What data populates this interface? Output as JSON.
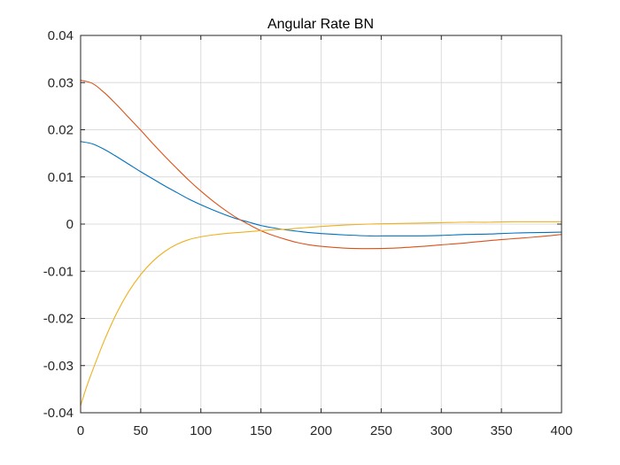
{
  "chart_data": {
    "type": "line",
    "title": "Angular Rate BN",
    "xlabel": "",
    "ylabel": "",
    "xlim": [
      0,
      400
    ],
    "ylim": [
      -0.04,
      0.04
    ],
    "xticks": [
      0,
      50,
      100,
      150,
      200,
      250,
      300,
      350,
      400
    ],
    "yticks": [
      0.04,
      0.03,
      0.02,
      0.01,
      0,
      -0.01,
      -0.02,
      -0.03,
      -0.04
    ],
    "xtick_labels": [
      "0",
      "50",
      "100",
      "150",
      "200",
      "250",
      "300",
      "350",
      "400"
    ],
    "ytick_labels": [
      "0.04",
      "0.03",
      "0.02",
      "0.01",
      "0",
      "-0.01",
      "-0.02",
      "-0.03",
      "-0.04"
    ],
    "grid": true,
    "series": [
      {
        "color": "#0072BD",
        "x": [
          0,
          10,
          20,
          30,
          40,
          50,
          60,
          70,
          80,
          90,
          100,
          110,
          120,
          130,
          140,
          150,
          160,
          170,
          180,
          190,
          200,
          220,
          240,
          260,
          280,
          300,
          320,
          340,
          360,
          380,
          400
        ],
        "y": [
          0.0175,
          0.017,
          0.0158,
          0.0143,
          0.0127,
          0.0111,
          0.0096,
          0.0081,
          0.0067,
          0.0053,
          0.0041,
          0.003,
          0.002,
          0.0011,
          0.0004,
          -0.0003,
          -0.0008,
          -0.0012,
          -0.0015,
          -0.0018,
          -0.002,
          -0.0023,
          -0.0025,
          -0.0025,
          -0.0025,
          -0.0024,
          -0.0022,
          -0.0021,
          -0.0019,
          -0.0018,
          -0.0017
        ]
      },
      {
        "color": "#D95319",
        "x": [
          0,
          10,
          20,
          30,
          40,
          50,
          60,
          70,
          80,
          90,
          100,
          110,
          120,
          130,
          140,
          150,
          160,
          170,
          180,
          190,
          200,
          220,
          240,
          260,
          280,
          300,
          320,
          340,
          360,
          380,
          400
        ],
        "y": [
          0.0305,
          0.0298,
          0.0278,
          0.0253,
          0.0226,
          0.0199,
          0.0171,
          0.0144,
          0.0118,
          0.0093,
          0.007,
          0.0049,
          0.003,
          0.0013,
          -0.0001,
          -0.0014,
          -0.0024,
          -0.0032,
          -0.0039,
          -0.0044,
          -0.0047,
          -0.0051,
          -0.0052,
          -0.0051,
          -0.0048,
          -0.0044,
          -0.004,
          -0.0035,
          -0.0031,
          -0.0027,
          -0.0022
        ]
      },
      {
        "color": "#EDB120",
        "x": [
          0,
          5,
          10,
          20,
          30,
          40,
          50,
          60,
          70,
          80,
          90,
          100,
          110,
          120,
          130,
          140,
          150,
          160,
          170,
          180,
          190,
          200,
          220,
          240,
          260,
          280,
          300,
          320,
          340,
          360,
          380,
          400
        ],
        "y": [
          -0.0385,
          -0.0345,
          -0.031,
          -0.0245,
          -0.0189,
          -0.0143,
          -0.0107,
          -0.0079,
          -0.0058,
          -0.0043,
          -0.0033,
          -0.0027,
          -0.0023,
          -0.002,
          -0.0018,
          -0.0016,
          -0.0014,
          -0.0012,
          -0.0011,
          -0.0009,
          -0.0007,
          -0.0005,
          -0.0002,
          0,
          0.0001,
          0.0002,
          0.0003,
          0.0004,
          0.0004,
          0.0005,
          0.0005,
          0.0005
        ]
      }
    ]
  }
}
